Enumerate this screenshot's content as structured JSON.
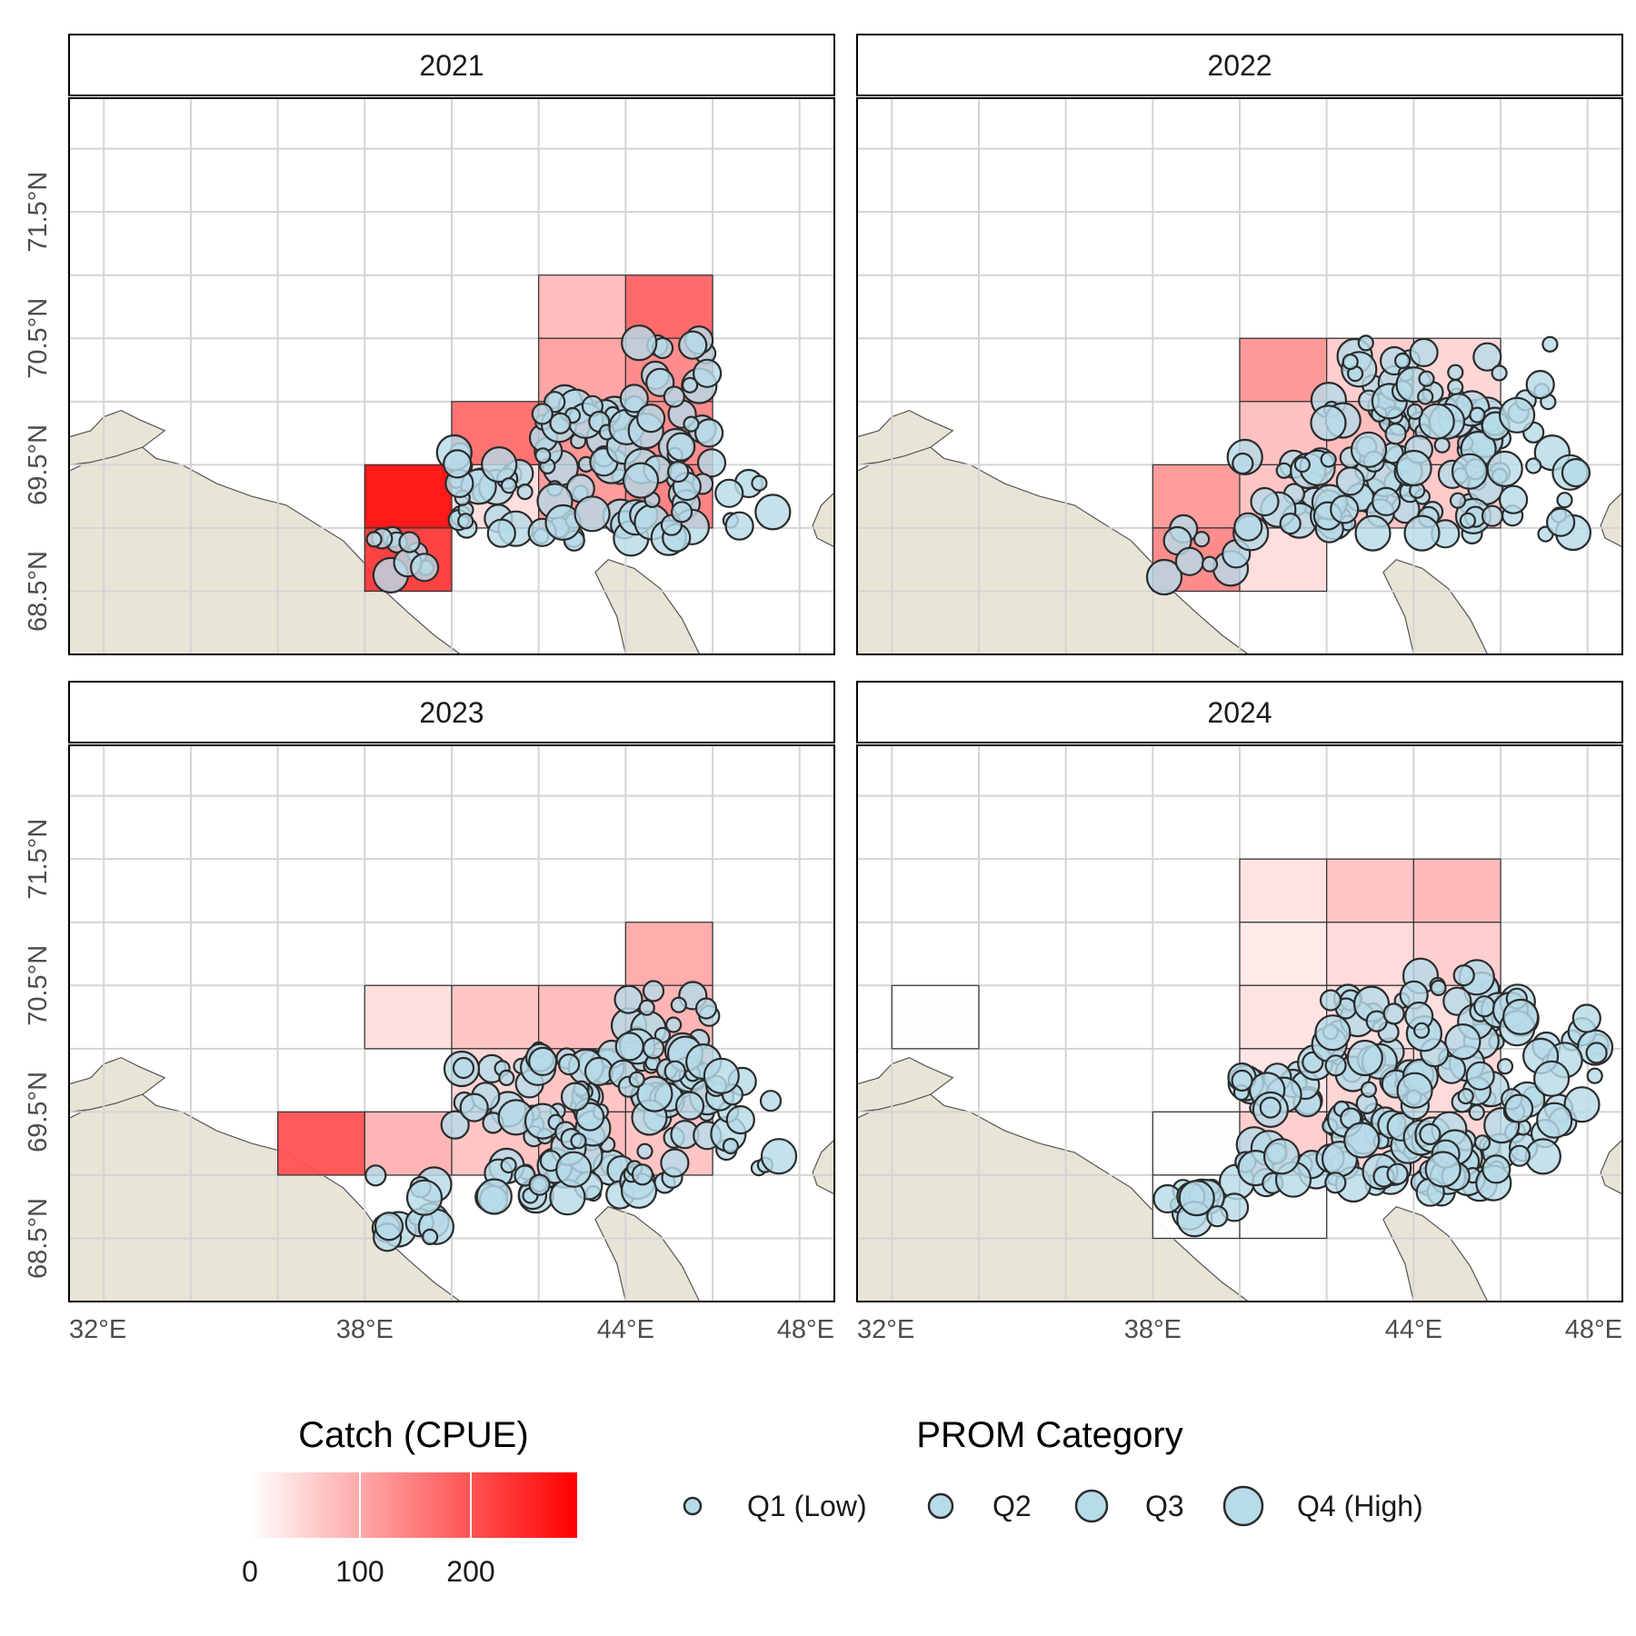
{
  "chart_data": {
    "type": "faceted-map",
    "panels": [
      {
        "title": "2021",
        "cells": [
          [
            38,
            69.0,
            280
          ],
          [
            38,
            68.5,
            230
          ],
          [
            40,
            69.5,
            170
          ],
          [
            40,
            69.0,
            40
          ],
          [
            42,
            70.5,
            80
          ],
          [
            42,
            70.0,
            110
          ],
          [
            42,
            69.5,
            130
          ],
          [
            42,
            69.0,
            120
          ],
          [
            44,
            70.5,
            180
          ],
          [
            44,
            70.0,
            140
          ],
          [
            44,
            69.5,
            140
          ],
          [
            44,
            69.0,
            150
          ]
        ]
      },
      {
        "title": "2022",
        "cells": [
          [
            38,
            69.0,
            120
          ],
          [
            38,
            68.5,
            140
          ],
          [
            40,
            70.0,
            125
          ],
          [
            40,
            69.5,
            75
          ],
          [
            40,
            69.0,
            70
          ],
          [
            40,
            68.5,
            40
          ],
          [
            42,
            70.0,
            60
          ],
          [
            42,
            69.5,
            80
          ],
          [
            42,
            69.0,
            70
          ],
          [
            44,
            70.0,
            50
          ],
          [
            44,
            69.5,
            75
          ],
          [
            44,
            69.0,
            65
          ]
        ]
      },
      {
        "title": "2023",
        "cells": [
          [
            36,
            69.0,
            200
          ],
          [
            38,
            70.0,
            40
          ],
          [
            38,
            69.0,
            90
          ],
          [
            40,
            70.0,
            70
          ],
          [
            40,
            69.5,
            50
          ],
          [
            40,
            69.0,
            70
          ],
          [
            42,
            70.0,
            80
          ],
          [
            42,
            69.5,
            70
          ],
          [
            42,
            69.0,
            80
          ],
          [
            44,
            70.5,
            100
          ],
          [
            44,
            70.0,
            90
          ],
          [
            44,
            69.5,
            80
          ],
          [
            44,
            69.0,
            70
          ]
        ]
      },
      {
        "title": "2024",
        "cells": [
          [
            32,
            70.0,
            3
          ],
          [
            38,
            69.0,
            1
          ],
          [
            38,
            68.5,
            1
          ],
          [
            40,
            68.5,
            1
          ],
          [
            40,
            71.0,
            35
          ],
          [
            40,
            70.5,
            25
          ],
          [
            40,
            70.0,
            35
          ],
          [
            40,
            69.5,
            30
          ],
          [
            40,
            69.0,
            60
          ],
          [
            42,
            71.0,
            70
          ],
          [
            42,
            70.5,
            45
          ],
          [
            42,
            70.0,
            40
          ],
          [
            42,
            69.5,
            50
          ],
          [
            42,
            69.0,
            50
          ],
          [
            44,
            71.0,
            85
          ],
          [
            44,
            70.5,
            60
          ],
          [
            44,
            70.0,
            40
          ],
          [
            44,
            69.5,
            45
          ],
          [
            44,
            69.0,
            50
          ]
        ]
      }
    ],
    "cell_size_deg": [
      2,
      0.5
    ],
    "x_ticks": [
      "32°E",
      "38°E",
      "44°E",
      "48°E"
    ],
    "y_ticks": [
      "68.5°N",
      "69.5°N",
      "70.5°N",
      "71.5°N"
    ],
    "xlim": [
      31.2,
      48.8
    ],
    "ylim": [
      68.0,
      72.4
    ],
    "grid": true,
    "fill_scale": {
      "title": "Catch (CPUE)",
      "breaks": [
        "0",
        "100",
        "200"
      ],
      "low": "#ffffff",
      "high": "#ff0000",
      "max": 295
    },
    "size_scale": {
      "title": "PROM Category",
      "levels": [
        "Q1 (Low)",
        "Q2",
        "Q3",
        "Q4 (High)"
      ]
    },
    "colors": {
      "land": "#e8e4d6",
      "point_fill": "#b7dbe8",
      "point_stroke": "#2b2b2b",
      "grid": "#d4d4d4"
    }
  }
}
